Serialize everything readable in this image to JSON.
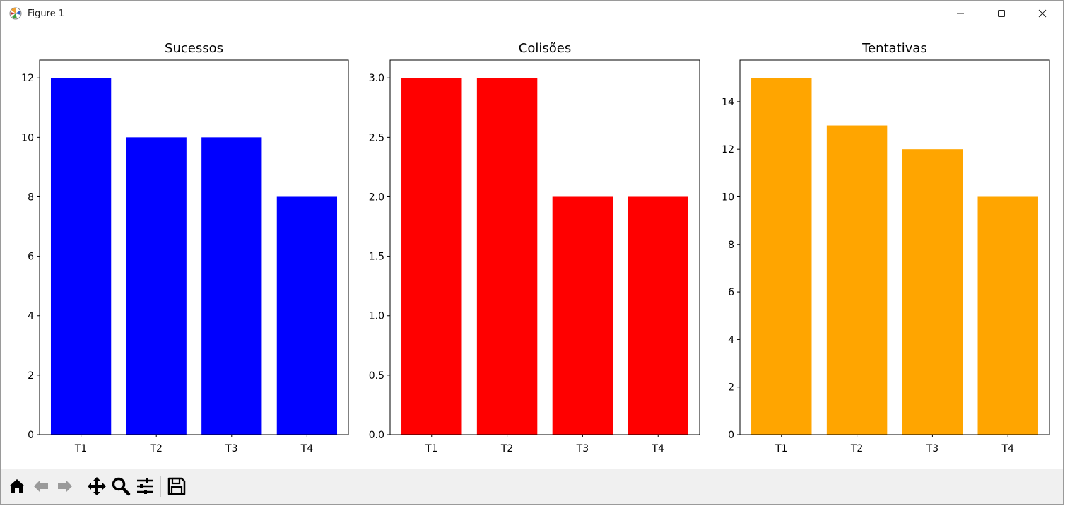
{
  "window": {
    "title": "Figure 1",
    "icons": {
      "app": "matplotlib-icon",
      "minimize": "minimize-icon",
      "maximize": "maximize-icon",
      "close": "close-icon"
    }
  },
  "toolbar": {
    "buttons": [
      "home-icon",
      "back-arrow-icon",
      "forward-arrow-icon",
      "pan-icon",
      "zoom-icon",
      "configure-subplots-icon",
      "save-icon"
    ]
  },
  "chart_data": [
    {
      "type": "bar",
      "title": "Sucessos",
      "categories": [
        "T1",
        "T2",
        "T3",
        "T4"
      ],
      "values": [
        12,
        10,
        10,
        8
      ],
      "color": "#0000ff",
      "ylim": [
        0,
        12.6
      ],
      "yticks": [
        0,
        2,
        4,
        6,
        8,
        10,
        12
      ],
      "yticklabels": [
        "0",
        "2",
        "4",
        "6",
        "8",
        "10",
        "12"
      ]
    },
    {
      "type": "bar",
      "title": "Colisões",
      "categories": [
        "T1",
        "T2",
        "T3",
        "T4"
      ],
      "values": [
        3,
        3,
        2,
        2
      ],
      "color": "#ff0000",
      "ylim": [
        0,
        3.15
      ],
      "yticks": [
        0,
        0.5,
        1,
        1.5,
        2,
        2.5,
        3
      ],
      "yticklabels": [
        "0.0",
        "0.5",
        "1.0",
        "1.5",
        "2.0",
        "2.5",
        "3.0"
      ]
    },
    {
      "type": "bar",
      "title": "Tentativas",
      "categories": [
        "T1",
        "T2",
        "T3",
        "T4"
      ],
      "values": [
        15,
        13,
        12,
        10
      ],
      "color": "#ffa500",
      "ylim": [
        0,
        15.75
      ],
      "yticks": [
        0,
        2,
        4,
        6,
        8,
        10,
        12,
        14
      ],
      "yticklabels": [
        "0",
        "2",
        "4",
        "6",
        "8",
        "10",
        "12",
        "14"
      ]
    }
  ]
}
